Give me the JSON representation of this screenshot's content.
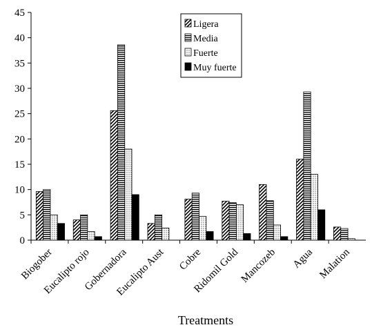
{
  "chart_data": {
    "type": "bar",
    "xlabel": "Treatments",
    "ylabel": "",
    "title": "",
    "ylim": [
      0,
      45
    ],
    "yticks": [
      0,
      5,
      10,
      15,
      20,
      25,
      30,
      35,
      40,
      45
    ],
    "grid": false,
    "legend_position": "top-center",
    "categories": [
      "Biogober",
      "Eucalipto rojo",
      "Gobernadora",
      "Eucalipto Aust",
      "Cobre",
      "Ridomil Gold",
      "Mancozeb",
      "Agua",
      "Malation"
    ],
    "series": [
      {
        "name": "Ligera",
        "pattern": "diagonal-hatch",
        "values": [
          9.6,
          4.0,
          25.6,
          3.3,
          8.1,
          7.7,
          11.0,
          16.0,
          2.6
        ]
      },
      {
        "name": "Media",
        "pattern": "horizontal-stripes",
        "values": [
          10.0,
          5.0,
          38.6,
          5.0,
          9.3,
          7.4,
          7.8,
          29.3,
          2.3
        ]
      },
      {
        "name": "Fuerte",
        "pattern": "dots",
        "values": [
          5.0,
          1.7,
          18.0,
          2.4,
          4.7,
          7.0,
          3.0,
          13.0,
          0.3
        ]
      },
      {
        "name": "Muy fuerte",
        "pattern": "solid-black",
        "values": [
          3.3,
          0.7,
          9.0,
          0.0,
          1.7,
          1.3,
          0.7,
          6.0,
          0.0
        ]
      }
    ]
  }
}
